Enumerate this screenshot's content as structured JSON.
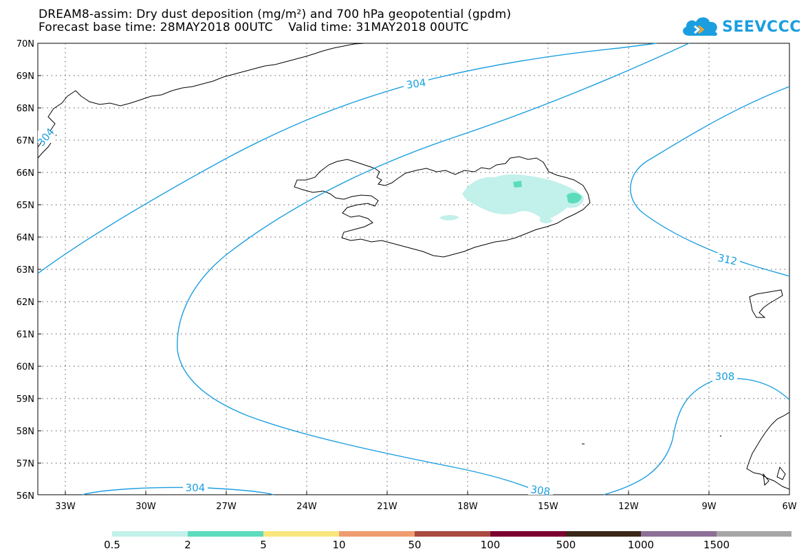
{
  "header": {
    "title_line1": "DREAM8-assim: Dry dust deposition (mg/m²) and 700 hPa geopotential (gpdm)",
    "title_line2": "Forecast base time: 28MAY2018 00UTC    Valid time: 31MAY2018 00UTC"
  },
  "logo": {
    "text": "SEEVCCC",
    "icon": "cloud-icon",
    "color": "#1b9ee0"
  },
  "map": {
    "lat_labels": [
      "70N",
      "69N",
      "68N",
      "67N",
      "66N",
      "65N",
      "64N",
      "63N",
      "62N",
      "61N",
      "60N",
      "59N",
      "58N",
      "57N",
      "56N"
    ],
    "lon_labels": [
      "33W",
      "30W",
      "27W",
      "24W",
      "21W",
      "18W",
      "15W",
      "12W",
      "9W",
      "6W"
    ],
    "contour_color": "#1b9ee0",
    "contour_labels": [
      "304",
      "304",
      "312",
      "308",
      "308",
      "304"
    ]
  },
  "colorbar": {
    "colors": [
      "#c2f0ea",
      "#5cdcbc",
      "#f9e77e",
      "#ef9c6f",
      "#a84a40",
      "#7d0030",
      "#3a2718",
      "#8d6f97",
      "#a6a6a6"
    ],
    "labels": [
      "0.5",
      "2",
      "5",
      "10",
      "50",
      "100",
      "500",
      "1000",
      "1500"
    ]
  }
}
